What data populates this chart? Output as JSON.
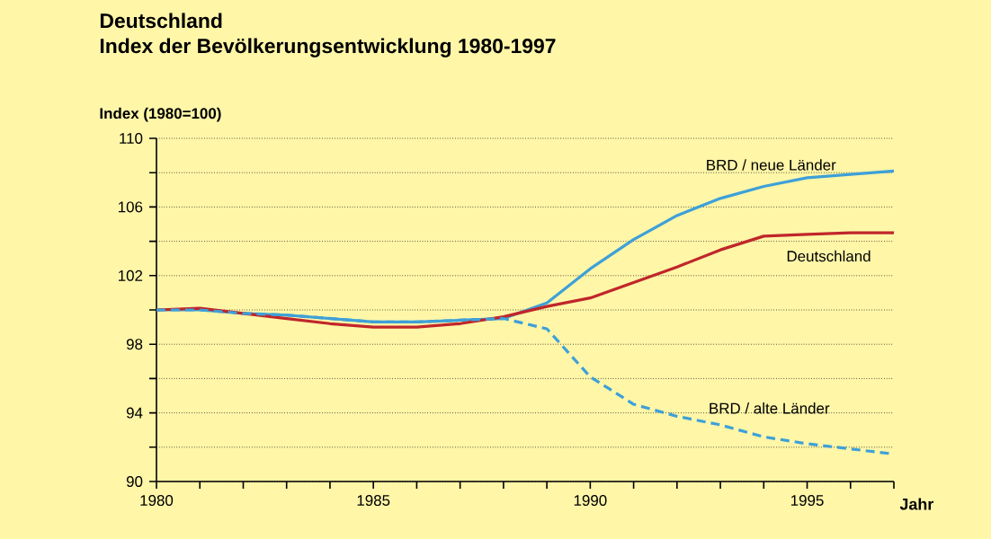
{
  "chart_data": {
    "type": "line",
    "title": "Deutschland",
    "subtitle": "Index der Bevölkerungsentwicklung 1980-1997",
    "ylabel": "Index (1980=100)",
    "xlabel": "Jahr",
    "x": [
      1980,
      1981,
      1982,
      1983,
      1984,
      1985,
      1986,
      1987,
      1988,
      1989,
      1990,
      1991,
      1992,
      1993,
      1994,
      1995,
      1996,
      1997
    ],
    "series": [
      {
        "name": "BRD / neue Länder",
        "color": "#3ea0d8",
        "line_style": "solid",
        "values": [
          100.0,
          100.0,
          99.8,
          99.7,
          99.5,
          99.3,
          99.3,
          99.4,
          99.5,
          100.4,
          102.4,
          104.1,
          105.5,
          106.5,
          107.2,
          107.7,
          107.9,
          108.1
        ]
      },
      {
        "name": "Deutschland",
        "color": "#c0262a",
        "line_style": "solid",
        "values": [
          100.0,
          100.1,
          99.8,
          99.5,
          99.2,
          99.0,
          99.0,
          99.2,
          99.6,
          100.2,
          100.7,
          101.6,
          102.5,
          103.5,
          104.3,
          104.4,
          104.5,
          104.5
        ]
      },
      {
        "name": "BRD / alte Länder",
        "color": "#3ea0d8",
        "line_style": "dashed",
        "values": [
          100.0,
          100.0,
          99.8,
          99.7,
          99.5,
          99.3,
          99.3,
          99.4,
          99.5,
          98.9,
          96.1,
          94.5,
          93.8,
          93.3,
          92.6,
          92.2,
          91.9,
          91.6
        ]
      }
    ],
    "xlim": [
      1980,
      1997
    ],
    "ylim": [
      90,
      110
    ],
    "xticks": [
      1980,
      {
        "value": 1981,
        "label": null
      },
      {
        "value": 1982,
        "label": null
      },
      {
        "value": 1983,
        "label": null
      },
      {
        "value": 1984,
        "label": null
      },
      1985,
      {
        "value": 1986,
        "label": null
      },
      {
        "value": 1987,
        "label": null
      },
      {
        "value": 1988,
        "label": null
      },
      {
        "value": 1989,
        "label": null
      },
      1990,
      {
        "value": 1991,
        "label": null
      },
      {
        "value": 1992,
        "label": null
      },
      {
        "value": 1993,
        "label": null
      },
      {
        "value": 1994,
        "label": null
      },
      1995,
      {
        "value": 1996,
        "label": null
      },
      {
        "value": 1997,
        "label": null
      }
    ],
    "yticks": [
      90,
      {
        "value": 92,
        "label": null
      },
      94,
      {
        "value": 96,
        "label": null
      },
      98,
      {
        "value": 100,
        "label": null
      },
      102,
      {
        "value": 104,
        "label": null
      },
      106,
      {
        "value": 108,
        "label": null
      },
      110
    ],
    "grid": "y",
    "legend": false
  }
}
